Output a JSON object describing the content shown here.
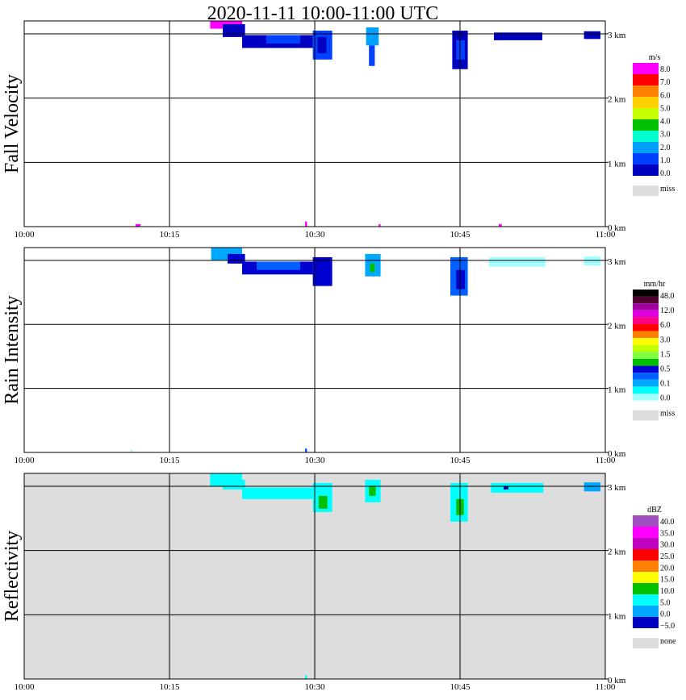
{
  "chart_data": {
    "type": "heatmap",
    "title": "2020-11-11   10:00-11:00 UTC",
    "x_axis": {
      "range": [
        "10:00",
        "11:00"
      ],
      "ticks": [
        "10:00",
        "10:15",
        "10:30",
        "10:45",
        "11:00"
      ]
    },
    "y_axis": {
      "range_km": [
        0,
        3.2
      ],
      "ticks": [
        "0 km",
        "1 km",
        "2 km",
        "3 km"
      ],
      "grid": true
    },
    "panels": [
      {
        "id": "fall-velocity",
        "ylabel": "Fall Velocity",
        "background": "#ffffff",
        "legend": {
          "unit": "m/s",
          "labels": [
            "8.0",
            "7.0",
            "6.0",
            "5.0",
            "4.0",
            "3.0",
            "2.0",
            "1.0",
            "0.0"
          ],
          "colors": [
            "#ff00ff",
            "#ff0000",
            "#ff8000",
            "#ffd000",
            "#c8ff00",
            "#00c000",
            "#00ffd0",
            "#00a0ff",
            "#0040ff",
            "#0000c0"
          ],
          "miss_label": "miss",
          "miss_color": "#dddddd"
        },
        "echoes": [
          {
            "t0": 19.2,
            "t1": 22.5,
            "h0": 3.08,
            "h1": 3.2,
            "color": "#ff00ff"
          },
          {
            "t0": 20.5,
            "t1": 22.8,
            "h0": 2.95,
            "h1": 3.15,
            "color": "#0000c0"
          },
          {
            "t0": 22.5,
            "t1": 29.8,
            "h0": 2.78,
            "h1": 2.98,
            "color": "#0000c0"
          },
          {
            "t0": 25,
            "t1": 28.5,
            "h0": 2.85,
            "h1": 2.98,
            "color": "#0040ff"
          },
          {
            "t0": 29.8,
            "t1": 31.8,
            "h0": 2.6,
            "h1": 3.05,
            "color": "#0040ff"
          },
          {
            "t0": 30.3,
            "t1": 31.2,
            "h0": 2.7,
            "h1": 2.95,
            "color": "#0000c0"
          },
          {
            "t0": 35.3,
            "t1": 36.6,
            "h0": 2.82,
            "h1": 3.1,
            "color": "#00a0ff"
          },
          {
            "t0": 35.6,
            "t1": 36.2,
            "h0": 2.5,
            "h1": 2.82,
            "color": "#0040ff"
          },
          {
            "t0": 44.2,
            "t1": 45.8,
            "h0": 2.45,
            "h1": 3.05,
            "color": "#0000c0"
          },
          {
            "t0": 44.6,
            "t1": 45.5,
            "h0": 2.6,
            "h1": 2.9,
            "color": "#0040ff"
          },
          {
            "t0": 48.5,
            "t1": 53.5,
            "h0": 2.9,
            "h1": 3.02,
            "color": "#0000c0"
          },
          {
            "t0": 57.8,
            "t1": 59.5,
            "h0": 2.92,
            "h1": 3.04,
            "color": "#0000c0"
          },
          {
            "t0": 11.5,
            "t1": 12.0,
            "h0": 0.0,
            "h1": 0.04,
            "color": "#ff00ff"
          },
          {
            "t0": 29.0,
            "t1": 29.2,
            "h0": 0.0,
            "h1": 0.08,
            "color": "#ff00ff"
          },
          {
            "t0": 36.6,
            "t1": 36.8,
            "h0": 0.0,
            "h1": 0.04,
            "color": "#ff00ff"
          },
          {
            "t0": 49.0,
            "t1": 49.3,
            "h0": 0.0,
            "h1": 0.04,
            "color": "#ff00ff"
          }
        ]
      },
      {
        "id": "rain-intensity",
        "ylabel": "Rain Intensity",
        "background": "#ffffff",
        "legend": {
          "unit": "mm/hr",
          "labels": [
            "48.0",
            "12.0",
            "6.0",
            "3.0",
            "1.5",
            "0.5",
            "0.1",
            "0.0"
          ],
          "colors": [
            "#000000",
            "#500030",
            "#a000a0",
            "#e000e0",
            "#ff0080",
            "#ff0000",
            "#ff8000",
            "#ffff00",
            "#c0ff00",
            "#80ff40",
            "#00c000",
            "#0000d0",
            "#0060ff",
            "#00a8ff",
            "#00ffff",
            "#a0ffff"
          ],
          "miss_label": "miss",
          "miss_color": "#dddddd"
        },
        "echoes": [
          {
            "t0": 19.3,
            "t1": 22.5,
            "h0": 3.0,
            "h1": 3.2,
            "color": "#00a8ff"
          },
          {
            "t0": 21,
            "t1": 22.8,
            "h0": 2.95,
            "h1": 3.1,
            "color": "#0000d0"
          },
          {
            "t0": 22.5,
            "t1": 29.8,
            "h0": 2.78,
            "h1": 2.98,
            "color": "#0000d0"
          },
          {
            "t0": 24,
            "t1": 28.5,
            "h0": 2.85,
            "h1": 2.98,
            "color": "#0060ff"
          },
          {
            "t0": 29.8,
            "t1": 31.8,
            "h0": 2.6,
            "h1": 3.05,
            "color": "#0000d0"
          },
          {
            "t0": 35.2,
            "t1": 36.8,
            "h0": 2.75,
            "h1": 3.1,
            "color": "#00a8ff"
          },
          {
            "t0": 35.7,
            "t1": 36.2,
            "h0": 2.82,
            "h1": 2.95,
            "color": "#00c000"
          },
          {
            "t0": 44.0,
            "t1": 45.8,
            "h0": 2.45,
            "h1": 3.05,
            "color": "#0060ff"
          },
          {
            "t0": 44.6,
            "t1": 45.5,
            "h0": 2.55,
            "h1": 2.85,
            "color": "#0000d0"
          },
          {
            "t0": 48.0,
            "t1": 53.8,
            "h0": 2.9,
            "h1": 3.05,
            "color": "#a0ffff"
          },
          {
            "t0": 57.8,
            "t1": 59.5,
            "h0": 2.92,
            "h1": 3.06,
            "color": "#a0ffff"
          },
          {
            "t0": 11.0,
            "t1": 11.2,
            "h0": 0.0,
            "h1": 0.04,
            "color": "#a0ffff"
          },
          {
            "t0": 29.0,
            "t1": 29.2,
            "h0": 0.0,
            "h1": 0.06,
            "color": "#0060ff"
          }
        ]
      },
      {
        "id": "reflectivity",
        "ylabel": "Reflectivity",
        "background": "#dddddd",
        "legend": {
          "unit": "dBZ",
          "labels": [
            "40.0",
            "35.0",
            "30.0",
            "25.0",
            "20.0",
            "15.0",
            "10.0",
            "5.0",
            "0.0",
            "−5.0"
          ],
          "colors": [
            "#a050c0",
            "#ff00ff",
            "#c000c0",
            "#ff0000",
            "#ff8000",
            "#ffff00",
            "#00c000",
            "#00ffff",
            "#00a8ff",
            "#0000c0"
          ],
          "miss_label": "none",
          "miss_color": "#dddddd"
        },
        "echoes": [
          {
            "t0": 19.2,
            "t1": 22.5,
            "h0": 3.0,
            "h1": 3.2,
            "color": "#00ffff"
          },
          {
            "t0": 20.5,
            "t1": 22.8,
            "h0": 2.95,
            "h1": 3.1,
            "color": "#00ffff"
          },
          {
            "t0": 22.5,
            "t1": 29.8,
            "h0": 2.8,
            "h1": 2.98,
            "color": "#00ffff"
          },
          {
            "t0": 29.8,
            "t1": 31.8,
            "h0": 2.6,
            "h1": 3.05,
            "color": "#00ffff"
          },
          {
            "t0": 30.4,
            "t1": 31.3,
            "h0": 2.65,
            "h1": 2.85,
            "color": "#00c000"
          },
          {
            "t0": 35.2,
            "t1": 36.8,
            "h0": 2.75,
            "h1": 3.1,
            "color": "#00ffff"
          },
          {
            "t0": 35.6,
            "t1": 36.3,
            "h0": 2.85,
            "h1": 3.0,
            "color": "#00c000"
          },
          {
            "t0": 44.0,
            "t1": 45.8,
            "h0": 2.45,
            "h1": 3.05,
            "color": "#00ffff"
          },
          {
            "t0": 44.6,
            "t1": 45.4,
            "h0": 2.55,
            "h1": 2.8,
            "color": "#00c000"
          },
          {
            "t0": 48.2,
            "t1": 53.6,
            "h0": 2.9,
            "h1": 3.05,
            "color": "#00ffff"
          },
          {
            "t0": 49.5,
            "t1": 50.0,
            "h0": 2.95,
            "h1": 3.0,
            "color": "#0000c0"
          },
          {
            "t0": 57.8,
            "t1": 59.5,
            "h0": 2.92,
            "h1": 3.06,
            "color": "#00a8ff"
          },
          {
            "t0": 29.0,
            "t1": 29.2,
            "h0": 0.0,
            "h1": 0.06,
            "color": "#00ffff"
          }
        ]
      }
    ]
  }
}
